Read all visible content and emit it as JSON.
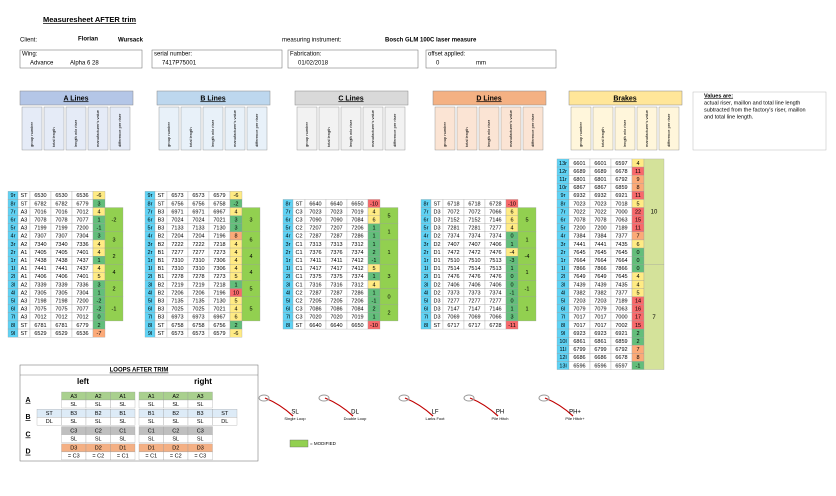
{
  "header": {
    "title": "Measuresheet AFTER trim",
    "client_label": "Client:",
    "client_first": "Florian",
    "client_last": "Wursack",
    "instrument_label": "measuring instrument:",
    "instrument": "Bosch GLM 100C laser measure",
    "fields": [
      {
        "label": "Wing:",
        "values": [
          "Advance",
          "Alpha 6 28"
        ]
      },
      {
        "label": "serial number:",
        "values": [
          "7417P75001"
        ]
      },
      {
        "label": "Fabrication:",
        "values": [
          "01/02/2018"
        ]
      },
      {
        "label": "offset applied:",
        "values": [
          "0",
          "mm"
        ]
      }
    ]
  },
  "note": {
    "title": "Values are:",
    "lines": [
      "actual riser, maillon and total line length",
      "subtracted from the factory's riser, maillon",
      "and total line length."
    ]
  },
  "column_headers": [
    "group number",
    "total length",
    "length w/o riser",
    "manufacturer's value",
    "difference per riser"
  ],
  "colors": {
    "label": "#5fd3f5",
    "riser": "#92d050",
    "brake_riser": "#d4e29a",
    "diff": [
      "#63be7b",
      "#ffeb84",
      "#fcaa78",
      "#f8696b"
    ]
  },
  "sections": [
    {
      "title": "A Lines",
      "color": "#b4c6e7",
      "rows": [
        [
          "9r",
          "ST",
          6530,
          6530,
          6536,
          -6
        ],
        [
          "8r",
          "ST",
          6782,
          6782,
          6779,
          3
        ],
        [
          "7r",
          "A3",
          7016,
          7016,
          7012,
          4
        ],
        [
          "6r",
          "A3",
          7078,
          7078,
          7077,
          1
        ],
        [
          "5r",
          "A3",
          7199,
          7199,
          7200,
          -1
        ],
        [
          "4r",
          "A2",
          7307,
          7307,
          7304,
          3
        ],
        [
          "3r",
          "A2",
          7340,
          7340,
          7336,
          4
        ],
        [
          "2r",
          "A1",
          7405,
          7405,
          7401,
          4
        ],
        [
          "1r",
          "A1",
          7438,
          7438,
          7437,
          1
        ],
        [
          "1l",
          "A1",
          7441,
          7441,
          7437,
          4
        ],
        [
          "2l",
          "A1",
          7406,
          7406,
          7401,
          5
        ],
        [
          "3l",
          "A2",
          7339,
          7339,
          7336,
          3
        ],
        [
          "4l",
          "A2",
          7305,
          7305,
          7304,
          1
        ],
        [
          "5l",
          "A3",
          7198,
          7198,
          7200,
          -2
        ],
        [
          "6l",
          "A3",
          7075,
          7075,
          7077,
          -2
        ],
        [
          "7l",
          "A3",
          7012,
          7012,
          7012,
          0
        ],
        [
          "8l",
          "ST",
          6781,
          6781,
          6779,
          2
        ],
        [
          "9l",
          "ST",
          6529,
          6529,
          6536,
          -7
        ]
      ],
      "risers": {
        "right": [
          -2,
          3,
          2
        ],
        "left": [
          4,
          2,
          -1
        ]
      }
    },
    {
      "title": "B Lines",
      "color": "#bdd7ee",
      "rows": [
        [
          "9r",
          "ST",
          6573,
          6573,
          6579,
          -6
        ],
        [
          "8r",
          "ST",
          6756,
          6756,
          6758,
          -2
        ],
        [
          "7r",
          "B3",
          6971,
          6971,
          6967,
          4
        ],
        [
          "6r",
          "B3",
          7024,
          7024,
          7021,
          3
        ],
        [
          "5r",
          "B3",
          7133,
          7133,
          7130,
          3
        ],
        [
          "4r",
          "B2",
          7204,
          7204,
          7196,
          8
        ],
        [
          "3r",
          "B2",
          7222,
          7222,
          7218,
          4
        ],
        [
          "2r",
          "B1",
          7277,
          7277,
          7273,
          4
        ],
        [
          "1r",
          "B1",
          7310,
          7310,
          7306,
          4
        ],
        [
          "1l",
          "B1",
          7310,
          7310,
          7306,
          4
        ],
        [
          "2l",
          "B1",
          7278,
          7278,
          7273,
          5
        ],
        [
          "3l",
          "B2",
          7219,
          7219,
          7218,
          1
        ],
        [
          "4l",
          "B2",
          7206,
          7206,
          7196,
          10
        ],
        [
          "5l",
          "B3",
          7135,
          7135,
          7130,
          5
        ],
        [
          "6l",
          "B3",
          7025,
          7025,
          7021,
          4
        ],
        [
          "7l",
          "B3",
          6973,
          6973,
          6967,
          6
        ],
        [
          "8l",
          "ST",
          6758,
          6758,
          6756,
          2
        ],
        [
          "9l",
          "ST",
          6573,
          6573,
          6579,
          -6
        ]
      ],
      "risers": {
        "right": [
          3,
          6,
          4
        ],
        "left": [
          4,
          5,
          5
        ]
      }
    },
    {
      "title": "C Lines",
      "color": "#d9d9d9",
      "rows": [
        [
          "8r",
          "ST",
          6640,
          6640,
          6650,
          -10
        ],
        [
          "7r",
          "C3",
          7023,
          7023,
          7019,
          4
        ],
        [
          "6r",
          "C3",
          7090,
          7090,
          7084,
          6
        ],
        [
          "5r",
          "C2",
          7207,
          7207,
          7206,
          1
        ],
        [
          "4r",
          "C2",
          7287,
          7287,
          7286,
          1
        ],
        [
          "3r",
          "C1",
          7313,
          7313,
          7312,
          1
        ],
        [
          "2r",
          "C1",
          7376,
          7376,
          7374,
          2
        ],
        [
          "1r",
          "C1",
          7411,
          7411,
          7412,
          -1
        ],
        [
          "1l",
          "C1",
          7417,
          7417,
          7412,
          5
        ],
        [
          "2l",
          "C1",
          7375,
          7375,
          7374,
          1
        ],
        [
          "3l",
          "C1",
          7316,
          7316,
          7312,
          4
        ],
        [
          "4l",
          "C2",
          7287,
          7287,
          7286,
          1
        ],
        [
          "5l",
          "C2",
          7205,
          7205,
          7206,
          -1
        ],
        [
          "6l",
          "C3",
          7086,
          7086,
          7084,
          2
        ],
        [
          "7l",
          "C3",
          7020,
          7020,
          7019,
          1
        ],
        [
          "8l",
          "ST",
          6640,
          6640,
          6650,
          -10
        ]
      ],
      "risers": {
        "right": [
          5,
          1,
          1
        ],
        "left": [
          3,
          0,
          2
        ]
      }
    },
    {
      "title": "D Lines",
      "color": "#f4b183",
      "rows": [
        [
          "8r",
          "ST",
          6718,
          6718,
          6728,
          -10
        ],
        [
          "7r",
          "D3",
          7072,
          7072,
          7066,
          6
        ],
        [
          "6r",
          "D3",
          7152,
          7152,
          7146,
          6
        ],
        [
          "5r",
          "D3",
          7281,
          7281,
          7277,
          4
        ],
        [
          "4r",
          "D2",
          7374,
          7374,
          7374,
          0
        ],
        [
          "3r",
          "D2",
          7407,
          7407,
          7406,
          1
        ],
        [
          "2r",
          "D1",
          7472,
          7472,
          7476,
          -4
        ],
        [
          "1r",
          "D1",
          7510,
          7510,
          7513,
          -3
        ],
        [
          "1l",
          "D1",
          7514,
          7514,
          7513,
          1
        ],
        [
          "2l",
          "D1",
          7476,
          7476,
          7476,
          0
        ],
        [
          "3l",
          "D2",
          7406,
          7406,
          7406,
          0
        ],
        [
          "4l",
          "D2",
          7373,
          7373,
          7374,
          -1
        ],
        [
          "5l",
          "D3",
          7277,
          7277,
          7277,
          0
        ],
        [
          "6l",
          "D3",
          7147,
          7147,
          7146,
          1
        ],
        [
          "7l",
          "D3",
          7069,
          7069,
          7066,
          3
        ],
        [
          "8l",
          "ST",
          6717,
          6717,
          6728,
          -11
        ]
      ],
      "risers": {
        "right": [
          5,
          1,
          -4
        ],
        "left": [
          1,
          -1,
          1
        ]
      }
    }
  ],
  "brakes": {
    "title": "Brakes",
    "color": "#ffe699",
    "rows": [
      [
        "13r",
        6601,
        6601,
        6597,
        4
      ],
      [
        "12r",
        6689,
        6689,
        6678,
        11
      ],
      [
        "11r",
        6801,
        6801,
        6792,
        9
      ],
      [
        "10r",
        6867,
        6867,
        6859,
        8
      ],
      [
        "9r",
        6932,
        6932,
        6921,
        11
      ],
      [
        "8r",
        7023,
        7023,
        7018,
        5
      ],
      [
        "7r",
        7022,
        7022,
        7000,
        22
      ],
      [
        "6r",
        7078,
        7078,
        7063,
        15
      ],
      [
        "5r",
        7200,
        7200,
        7189,
        11
      ],
      [
        "4r",
        7384,
        7384,
        7377,
        7
      ],
      [
        "3r",
        7441,
        7441,
        7435,
        6
      ],
      [
        "2r",
        7645,
        7645,
        7645,
        0
      ],
      [
        "1r",
        7664,
        7664,
        7664,
        0
      ],
      [
        "1l",
        7866,
        7866,
        7866,
        0
      ],
      [
        "2l",
        7649,
        7649,
        7645,
        4
      ],
      [
        "3l",
        7439,
        7439,
        7435,
        4
      ],
      [
        "4l",
        7382,
        7382,
        7377,
        5
      ],
      [
        "5l",
        7203,
        7203,
        7189,
        14
      ],
      [
        "6l",
        7079,
        7079,
        7063,
        16
      ],
      [
        "7l",
        7017,
        7017,
        7000,
        17
      ],
      [
        "8l",
        7017,
        7017,
        7002,
        15
      ],
      [
        "9l",
        6923,
        6923,
        6921,
        2
      ],
      [
        "10l",
        6861,
        6861,
        6859,
        2
      ],
      [
        "11l",
        6799,
        6799,
        6792,
        7
      ],
      [
        "12l",
        6686,
        6686,
        6678,
        8
      ],
      [
        "13l",
        6596,
        6596,
        6597,
        -1
      ]
    ],
    "risers": {
      "right": [
        10
      ],
      "left": [
        7
      ]
    }
  },
  "loops": {
    "title": "LOOPS AFTER TRIM",
    "left_label": "left",
    "right_label": "right",
    "rows": [
      {
        "label": "A",
        "color": "#a9d08e",
        "left": [
          [
            "A3",
            "SL"
          ],
          [
            "A2",
            "SL"
          ],
          [
            "A1",
            "SL"
          ]
        ],
        "right": [
          [
            "A1",
            "SL"
          ],
          [
            "A2",
            "SL"
          ],
          [
            "A3",
            "SL"
          ]
        ]
      },
      {
        "label": "B",
        "color": "#ddebf7",
        "left": [
          [
            "ST",
            "DL"
          ],
          [
            "B3",
            "SL"
          ],
          [
            "B2",
            "SL"
          ],
          [
            "B1",
            "SL"
          ]
        ],
        "right": [
          [
            "B1",
            "SL"
          ],
          [
            "B2",
            "SL"
          ],
          [
            "B3",
            "SL"
          ],
          [
            "ST",
            "DL"
          ]
        ]
      },
      {
        "label": "C",
        "color": "#bfbfbf",
        "left": [
          [
            "C3",
            "SL"
          ],
          [
            "C2",
            "SL"
          ],
          [
            "C1",
            "SL"
          ]
        ],
        "right": [
          [
            "C1",
            "SL"
          ],
          [
            "C2",
            "SL"
          ],
          [
            "C3",
            "SL"
          ]
        ]
      },
      {
        "label": "D",
        "color": "#f4b084",
        "left": [
          [
            "D3",
            "= C3"
          ],
          [
            "D2",
            "= C2"
          ],
          [
            "D1",
            "= C1"
          ]
        ],
        "right": [
          [
            "D1",
            "= C1"
          ],
          [
            "D2",
            "= C2"
          ],
          [
            "D3",
            "= C3"
          ]
        ]
      }
    ]
  },
  "legend": [
    {
      "code": "SL",
      "name": "Single Loop"
    },
    {
      "code": "DL",
      "name": "Double Loop"
    },
    {
      "code": "LF",
      "name": "Larks Foot"
    },
    {
      "code": "PH",
      "name": "Pile Hitch"
    },
    {
      "code": "PH+",
      "name": "Pile Hitch+"
    }
  ],
  "modified": {
    "label": "= MODIFIED",
    "color": "#92d050"
  }
}
